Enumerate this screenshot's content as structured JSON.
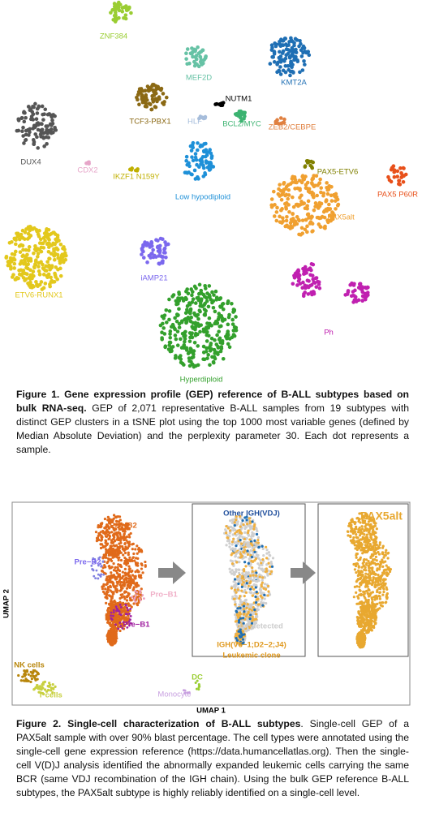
{
  "figure1": {
    "labels": [
      "ZNF384",
      "MEF2D",
      "KMT2A",
      "NUTM1",
      "TCF3-PBX1",
      "HLF",
      "BCL2/MYC",
      "ZEB2/CEBPE",
      "DUX4",
      "CDX2",
      "IKZF1 N159Y",
      "Low hypodiploid",
      "PAX5-ETV6",
      "PAX5 P60R",
      "PAX5alt",
      "ETV6-RUNX1",
      "iAMP21",
      "Ph",
      "Hyperdiploid"
    ],
    "caption_title": "Figure 1. Gene expression profile (GEP) reference of B-ALL subtypes based on bulk RNA-seq.",
    "caption_body": "GEP of 2,071 representative B-ALL samples from 19 subtypes with distinct GEP clusters in a tSNE plot using the top 1000 most variable genes (defined by Median Absolute Deviation) and the perplexity parameter 30. Each dot represents a sample."
  },
  "figure2": {
    "x_axis": "UMAP 1",
    "y_axis": "UMAP 2",
    "labels": [
      "Pro−B2",
      "Pre−B2",
      "Pro−B1",
      "Pre−B1",
      "Other IGH(VDJ)",
      "Not detected",
      "IGH(V6−1;D2−2;J4)",
      "Leukemic clone",
      "PAX5alt",
      "NK cells",
      "T cells",
      "DC",
      "Monocyte"
    ],
    "caption_title": "Figure 2. Single-cell characterization of B-ALL subtypes",
    "caption_body": ". Single-cell GEP of a PAX5alt sample with over 90% blast percentage. The cell types were annotated using the single-cell gene expression reference (https://data.humancellatlas.org). Then the single-cell V(D)J analysis identified the abnormally expanded leukemic cells carrying the same BCR (same VDJ recombination of the IGH chain). Using the bulk GEP reference B-ALL subtypes, the PAX5alt subtype is highly reliably identified on a single-cell level."
  }
}
